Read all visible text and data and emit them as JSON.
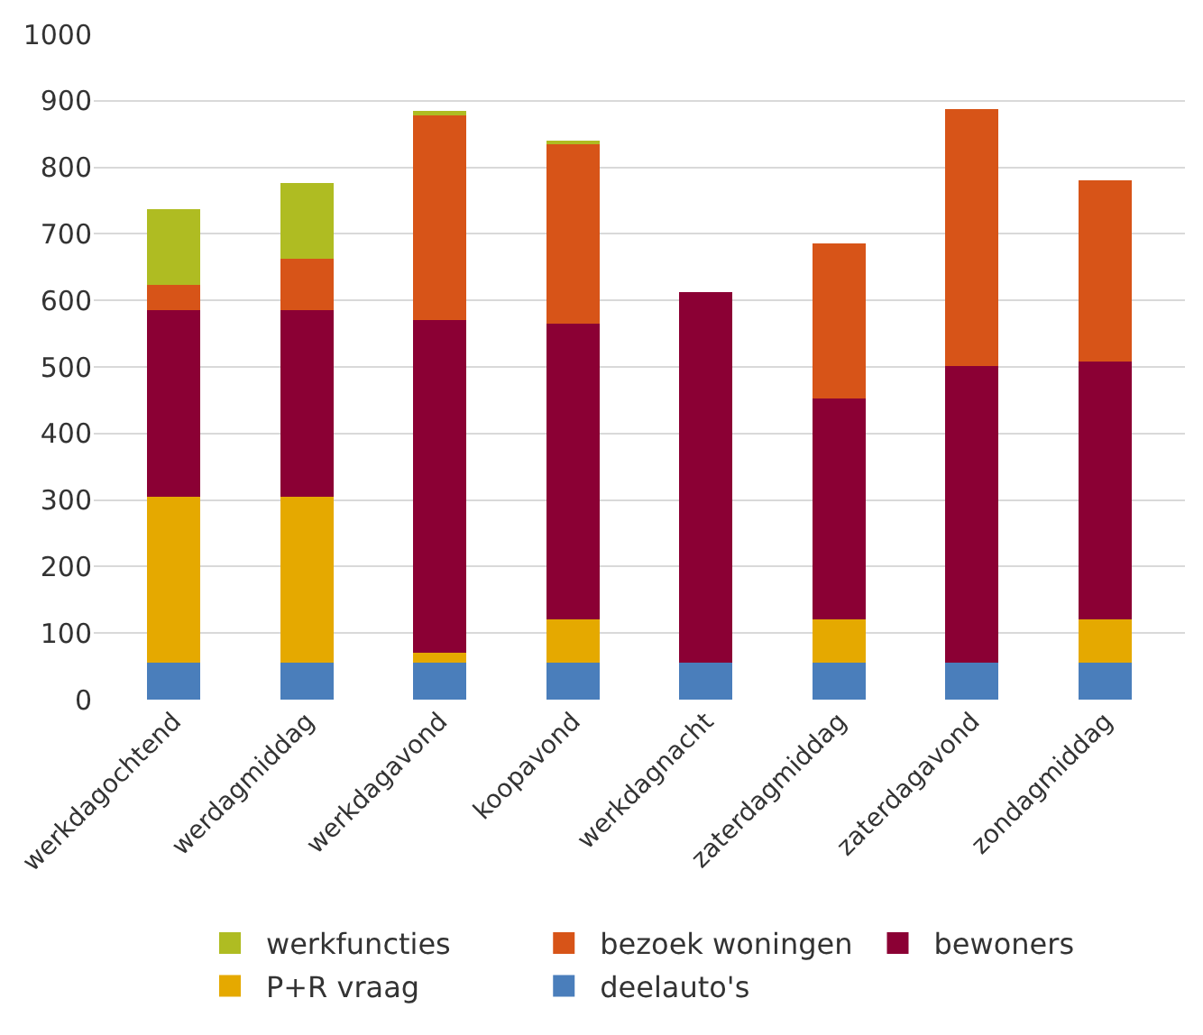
{
  "chart_data": {
    "type": "bar",
    "stacked": true,
    "categories": [
      "werkdagochtend",
      "werdagmiddag",
      "werkdagavond",
      "koopavond",
      "werkdagnacht",
      "zaterdagmiddag",
      "zaterdagavond",
      "zondagmiddag"
    ],
    "series": [
      {
        "name": "deelauto's",
        "color": "#4a7ebb",
        "values": [
          55,
          55,
          55,
          55,
          55,
          55,
          55,
          55
        ]
      },
      {
        "name": "P+R vraag",
        "color": "#e5a900",
        "values": [
          250,
          250,
          15,
          65,
          0,
          65,
          0,
          65
        ]
      },
      {
        "name": "bewoners",
        "color": "#8b0034",
        "values": [
          280,
          280,
          500,
          445,
          558,
          333,
          447,
          388
        ]
      },
      {
        "name": "bezoek woningen",
        "color": "#d75418",
        "values": [
          38,
          78,
          310,
          270,
          0,
          232,
          386,
          272
        ]
      },
      {
        "name": "werkfuncties",
        "color": "#afbc22",
        "values": [
          114,
          113,
          5,
          5,
          0,
          0,
          0,
          0
        ]
      }
    ],
    "ylim": [
      0,
      1000
    ],
    "yticks": [
      0,
      100,
      200,
      300,
      400,
      500,
      600,
      700,
      800,
      900,
      1000
    ],
    "grid": "y",
    "legend": "bottom"
  }
}
